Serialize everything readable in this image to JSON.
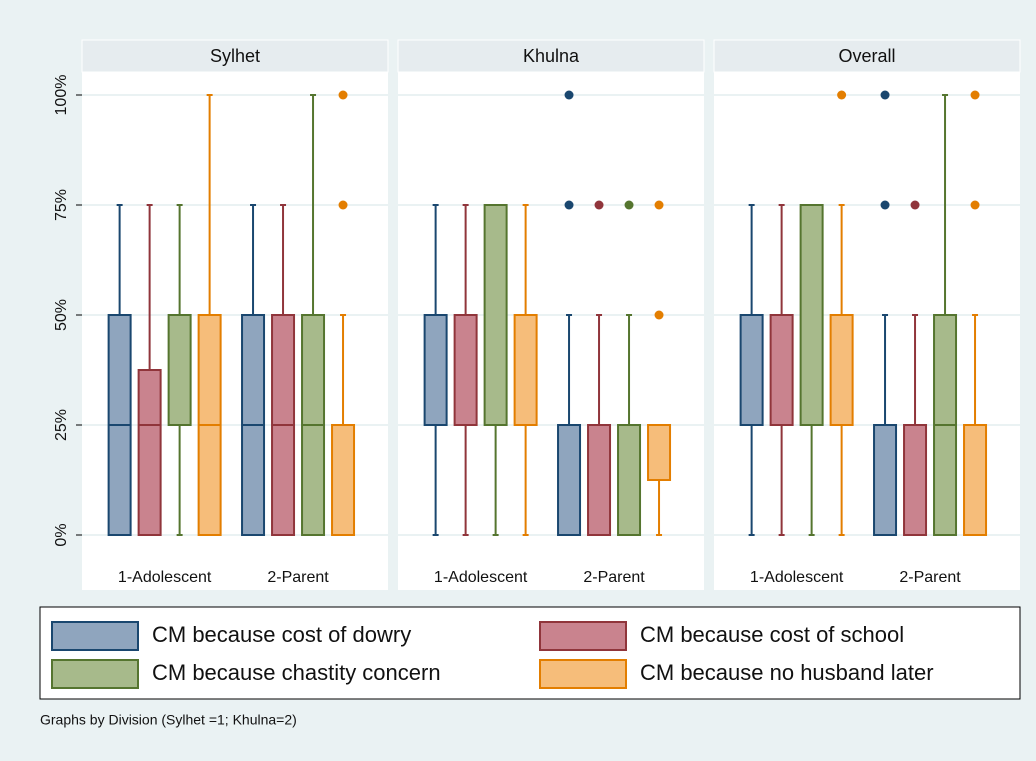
{
  "chart_data": [
    {
      "type": "box",
      "title": "Sylhet",
      "categories": [
        "1-Adolescent",
        "2-Parent"
      ],
      "ylim": [
        0,
        100
      ],
      "yticks": [
        {
          "value": 0,
          "label": "0%"
        },
        {
          "value": 25,
          "label": "25%"
        },
        {
          "value": 50,
          "label": "50%"
        },
        {
          "value": 75,
          "label": "75%"
        },
        {
          "value": 100,
          "label": "100%"
        }
      ],
      "grid": true,
      "series": [
        {
          "name": "CM because cost of dowry",
          "color": "#1a476f",
          "fill": "#8fa5be",
          "values": [
            {
              "min": 0,
              "q1": 0,
              "median": 25,
              "q3": 50,
              "max": 75,
              "outliers": []
            },
            {
              "min": 0,
              "q1": 0,
              "median": 25,
              "q3": 50,
              "max": 75,
              "outliers": []
            }
          ]
        },
        {
          "name": "CM because cost of school",
          "color": "#90353b",
          "fill": "#c9838e",
          "values": [
            {
              "min": 0,
              "q1": 0,
              "median": 25,
              "q3": 37.5,
              "max": 75,
              "outliers": []
            },
            {
              "min": 0,
              "q1": 0,
              "median": 25,
              "q3": 50,
              "max": 75,
              "outliers": []
            }
          ]
        },
        {
          "name": "CM because chastity concern",
          "color": "#55752f",
          "fill": "#a7ba8b",
          "values": [
            {
              "min": 0,
              "q1": 25,
              "median": 25,
              "q3": 50,
              "max": 75,
              "outliers": []
            },
            {
              "min": 0,
              "q1": 0,
              "median": 25,
              "q3": 50,
              "max": 100,
              "outliers": []
            }
          ]
        },
        {
          "name": "CM because no husband later",
          "color": "#e37e00",
          "fill": "#f6bd7a",
          "values": [
            {
              "min": 0,
              "q1": 0,
              "median": 25,
              "q3": 50,
              "max": 100,
              "outliers": []
            },
            {
              "min": 0,
              "q1": 0,
              "median": 0,
              "q3": 25,
              "max": 50,
              "outliers": [
                75,
                100
              ]
            }
          ]
        }
      ]
    },
    {
      "type": "box",
      "title": "Khulna",
      "categories": [
        "1-Adolescent",
        "2-Parent"
      ],
      "ylim": [
        0,
        100
      ],
      "yticks": [
        {
          "value": 0,
          "label": "0%"
        },
        {
          "value": 25,
          "label": "25%"
        },
        {
          "value": 50,
          "label": "50%"
        },
        {
          "value": 75,
          "label": "75%"
        },
        {
          "value": 100,
          "label": "100%"
        }
      ],
      "grid": true,
      "series": [
        {
          "name": "CM because cost of dowry",
          "color": "#1a476f",
          "fill": "#8fa5be",
          "values": [
            {
              "min": 0,
              "q1": 25,
              "median": 25,
              "q3": 50,
              "max": 75,
              "outliers": []
            },
            {
              "min": 0,
              "q1": 0,
              "median": 0,
              "q3": 25,
              "max": 50,
              "outliers": [
                75,
                100
              ]
            }
          ]
        },
        {
          "name": "CM because cost of school",
          "color": "#90353b",
          "fill": "#c9838e",
          "values": [
            {
              "min": 0,
              "q1": 25,
              "median": 25,
              "q3": 50,
              "max": 75,
              "outliers": []
            },
            {
              "min": 0,
              "q1": 0,
              "median": 0,
              "q3": 25,
              "max": 50,
              "outliers": [
                75
              ]
            }
          ]
        },
        {
          "name": "CM because chastity concern",
          "color": "#55752f",
          "fill": "#a7ba8b",
          "values": [
            {
              "min": 0,
              "q1": 25,
              "median": 25,
              "q3": 75,
              "max": 75,
              "outliers": []
            },
            {
              "min": 0,
              "q1": 0,
              "median": 0,
              "q3": 25,
              "max": 50,
              "outliers": [
                75
              ]
            }
          ]
        },
        {
          "name": "CM because no husband later",
          "color": "#e37e00",
          "fill": "#f6bd7a",
          "values": [
            {
              "min": 0,
              "q1": 25,
              "median": 25,
              "q3": 50,
              "max": 75,
              "outliers": []
            },
            {
              "min": 0,
              "q1": 12.5,
              "median": 25,
              "q3": 25,
              "max": 25,
              "outliers": [
                50,
                75
              ]
            }
          ]
        }
      ]
    },
    {
      "type": "box",
      "title": "Overall",
      "categories": [
        "1-Adolescent",
        "2-Parent"
      ],
      "ylim": [
        0,
        100
      ],
      "yticks": [
        {
          "value": 0,
          "label": "0%"
        },
        {
          "value": 25,
          "label": "25%"
        },
        {
          "value": 50,
          "label": "50%"
        },
        {
          "value": 75,
          "label": "75%"
        },
        {
          "value": 100,
          "label": "100%"
        }
      ],
      "grid": true,
      "series": [
        {
          "name": "CM because cost of dowry",
          "color": "#1a476f",
          "fill": "#8fa5be",
          "values": [
            {
              "min": 0,
              "q1": 25,
              "median": 25,
              "q3": 50,
              "max": 75,
              "outliers": []
            },
            {
              "min": 0,
              "q1": 0,
              "median": 0,
              "q3": 25,
              "max": 50,
              "outliers": [
                75,
                100
              ]
            }
          ]
        },
        {
          "name": "CM because cost of school",
          "color": "#90353b",
          "fill": "#c9838e",
          "values": [
            {
              "min": 0,
              "q1": 25,
              "median": 25,
              "q3": 50,
              "max": 75,
              "outliers": []
            },
            {
              "min": 0,
              "q1": 0,
              "median": 0,
              "q3": 25,
              "max": 50,
              "outliers": [
                75
              ]
            }
          ]
        },
        {
          "name": "CM because chastity concern",
          "color": "#55752f",
          "fill": "#a7ba8b",
          "values": [
            {
              "min": 0,
              "q1": 25,
              "median": 25,
              "q3": 75,
              "max": 75,
              "outliers": []
            },
            {
              "min": 0,
              "q1": 0,
              "median": 25,
              "q3": 50,
              "max": 100,
              "outliers": []
            }
          ]
        },
        {
          "name": "CM because no husband later",
          "color": "#e37e00",
          "fill": "#f6bd7a",
          "values": [
            {
              "min": 0,
              "q1": 25,
              "median": 25,
              "q3": 50,
              "max": 75,
              "outliers": [
                100
              ]
            },
            {
              "min": 0,
              "q1": 0,
              "median": 0,
              "q3": 25,
              "max": 50,
              "outliers": [
                75,
                100
              ]
            }
          ]
        }
      ]
    }
  ],
  "note": "Graphs by Division (Sylhet =1; Khulna=2)"
}
